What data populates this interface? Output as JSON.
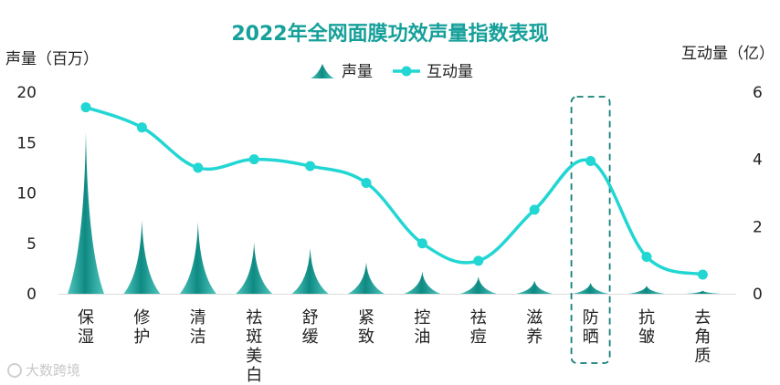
{
  "chart_data": {
    "type": "combo-bar-line",
    "title": "2022年全网面膜功效声量指数表现",
    "ylabel_left": "声量（百万）",
    "ylabel_right": "互动量（亿）",
    "ylim_left": [
      0,
      20
    ],
    "yticks_left": [
      0,
      5,
      10,
      15,
      20
    ],
    "ylim_right": [
      0,
      6
    ],
    "yticks_right": [
      0,
      2,
      4,
      6
    ],
    "categories": [
      [
        "保",
        "湿"
      ],
      [
        "修",
        "护"
      ],
      [
        "清",
        "洁"
      ],
      [
        "祛",
        "斑",
        "美",
        "白"
      ],
      [
        "舒",
        "缓"
      ],
      [
        "紧",
        "致"
      ],
      [
        "控",
        "油"
      ],
      [
        "祛",
        "痘"
      ],
      [
        "滋",
        "养"
      ],
      [
        "防",
        "晒"
      ],
      [
        "抗",
        "皱"
      ],
      [
        "去",
        "角",
        "质"
      ]
    ],
    "series": [
      {
        "name": "声量",
        "type": "bar",
        "axis": "left",
        "values": [
          16,
          7.3,
          7.1,
          5.1,
          4.5,
          3.1,
          2.2,
          1.7,
          1.3,
          1.1,
          0.8,
          0.3
        ]
      },
      {
        "name": "互动量",
        "type": "line",
        "axis": "right",
        "values": [
          5.55,
          4.95,
          3.75,
          4.0,
          3.8,
          3.3,
          1.5,
          0.98,
          2.5,
          3.95,
          1.1,
          0.57
        ]
      }
    ],
    "highlight_category_index": 9,
    "legend": "top-center",
    "colors": {
      "bar_light": "#4fc6bd",
      "bar_dark": "#0e8a83",
      "line": "#22d6d3",
      "title": "#16a09a",
      "highlight": "#137f78"
    }
  },
  "watermark": "大数跨境"
}
